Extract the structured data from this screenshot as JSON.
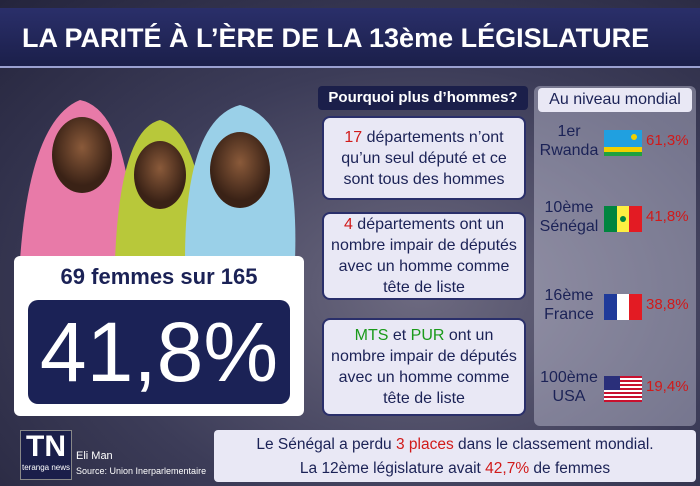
{
  "title": "LA PARITÉ À L’ÈRE DE LA 13ème LÉGISLATURE",
  "summary": {
    "heading": "69 femmes sur 165",
    "big_value": "41,8%"
  },
  "reasons": {
    "heading": "Pourquoi plus d’hommes?",
    "boxes": [
      {
        "parts": [
          {
            "text": "17",
            "color": "#d11a1a"
          },
          {
            "text": " départements n’ont qu’un seul député et ce sont tous des hommes"
          }
        ]
      },
      {
        "parts": [
          {
            "text": "4",
            "color": "#d11a1a"
          },
          {
            "text": " départements ont un nombre impair de députés avec un homme comme tête de liste"
          }
        ]
      },
      {
        "parts": [
          {
            "text": "MTS",
            "color": "#1a9a1a"
          },
          {
            "text": " et "
          },
          {
            "text": "PUR",
            "color": "#1a9a1a"
          },
          {
            "text": " ont un nombre impair de députés avec un homme comme tête de liste"
          }
        ]
      }
    ]
  },
  "world": {
    "heading": "Au niveau mondial",
    "entries": [
      {
        "rank": "1er",
        "country": "Rwanda",
        "value": "61,3%"
      },
      {
        "rank": "10ème",
        "country": "Sénégal",
        "value": "41,8%"
      },
      {
        "rank": "16ème",
        "country": "France",
        "value": "38,8%"
      },
      {
        "rank": "100ème",
        "country": "USA",
        "value": "19,4%"
      }
    ]
  },
  "footer": {
    "lines": [
      {
        "parts": [
          {
            "text": "Le Sénégal a perdu "
          },
          {
            "text": "3 places",
            "color": "#d11a1a"
          },
          {
            "text": " dans le classement mondial."
          }
        ]
      },
      {
        "parts": [
          {
            "text": "La 12ème législature avait "
          },
          {
            "text": "42,7%",
            "color": "#d11a1a"
          },
          {
            "text": " de femmes"
          }
        ]
      }
    ]
  },
  "credits": {
    "logo": "TN",
    "logo_sub": "teranga news",
    "author": "Eli Man",
    "source": "Source: Union Inerparlementaire"
  }
}
